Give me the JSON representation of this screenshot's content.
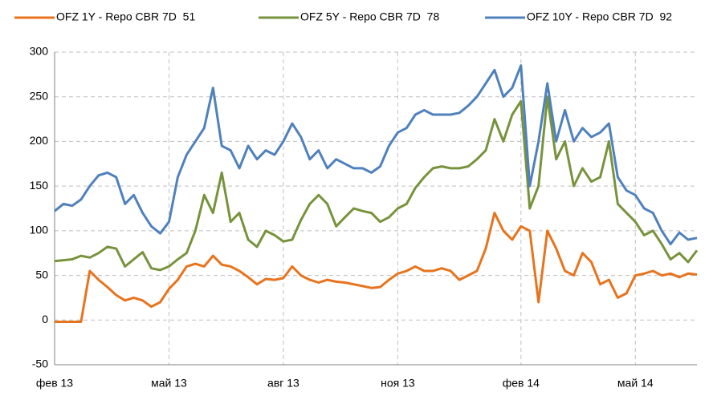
{
  "chart_data": {
    "type": "line",
    "categories": [
      "фев 13",
      null,
      null,
      null,
      null,
      null,
      null,
      null,
      null,
      null,
      null,
      null,
      null,
      "май 13",
      null,
      null,
      null,
      null,
      null,
      null,
      null,
      null,
      null,
      null,
      null,
      null,
      "авг 13",
      null,
      null,
      null,
      null,
      null,
      null,
      null,
      null,
      null,
      null,
      null,
      null,
      "ноя 13",
      null,
      null,
      null,
      null,
      null,
      null,
      null,
      null,
      null,
      null,
      null,
      null,
      null,
      "фев 14",
      null,
      null,
      null,
      null,
      null,
      null,
      null,
      null,
      null,
      null,
      null,
      null,
      "май 14",
      null,
      null,
      null,
      null,
      null,
      null,
      null
    ],
    "series": [
      {
        "name": "OFZ 1Y - Repo CBR 7D  51",
        "color": "#e8731d",
        "values": [
          -2,
          -2,
          -2,
          -2,
          55,
          45,
          37,
          28,
          22,
          25,
          22,
          15,
          20,
          35,
          45,
          60,
          63,
          60,
          72,
          62,
          60,
          55,
          48,
          40,
          46,
          45,
          47,
          60,
          50,
          45,
          42,
          45,
          43,
          42,
          40,
          38,
          36,
          37,
          45,
          52,
          55,
          60,
          55,
          55,
          58,
          55,
          45,
          50,
          55,
          80,
          120,
          100,
          90,
          105,
          100,
          20,
          100,
          80,
          55,
          50,
          75,
          65,
          40,
          45,
          25,
          30,
          50,
          52,
          55,
          50,
          52,
          48,
          52,
          51
        ]
      },
      {
        "name": "OFZ 5Y - Repo CBR 7D  78",
        "color": "#77933c",
        "values": [
          66,
          67,
          68,
          72,
          70,
          75,
          82,
          80,
          60,
          68,
          76,
          58,
          56,
          60,
          68,
          75,
          100,
          140,
          120,
          165,
          110,
          120,
          90,
          82,
          100,
          95,
          88,
          90,
          112,
          130,
          140,
          130,
          105,
          115,
          125,
          122,
          120,
          110,
          115,
          125,
          130,
          148,
          160,
          170,
          172,
          170,
          170,
          172,
          180,
          190,
          225,
          200,
          230,
          245,
          125,
          150,
          250,
          180,
          200,
          150,
          170,
          155,
          160,
          200,
          130,
          120,
          110,
          95,
          100,
          85,
          68,
          75,
          65,
          78
        ]
      },
      {
        "name": "OFZ 10Y - Repo CBR 7D  92",
        "color": "#4f81bd",
        "values": [
          122,
          130,
          128,
          135,
          150,
          162,
          165,
          160,
          130,
          140,
          120,
          105,
          97,
          110,
          160,
          185,
          200,
          215,
          260,
          195,
          190,
          170,
          195,
          180,
          190,
          185,
          200,
          220,
          205,
          180,
          190,
          170,
          180,
          175,
          170,
          170,
          165,
          172,
          195,
          210,
          215,
          230,
          235,
          230,
          230,
          230,
          232,
          240,
          250,
          265,
          280,
          250,
          260,
          285,
          150,
          200,
          265,
          200,
          235,
          200,
          215,
          205,
          210,
          220,
          160,
          145,
          140,
          125,
          120,
          100,
          85,
          98,
          90,
          92
        ]
      }
    ],
    "ylim": [
      -50,
      300
    ],
    "yticks": [
      -50,
      0,
      50,
      100,
      150,
      200,
      250,
      300
    ],
    "grid": true,
    "legend": "top"
  }
}
